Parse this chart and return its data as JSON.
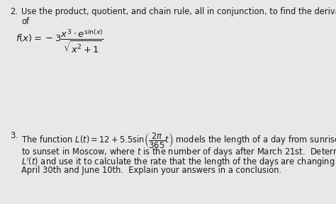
{
  "background_color": "#e8e8e8",
  "text_color": "#1a1a1a",
  "fig_width": 4.74,
  "fig_height": 2.88,
  "dpi": 100,
  "item2_number": "2.",
  "item2_line1": "Use the product, quotient, and chain rule, all in conjunction, to find the derivative",
  "item2_line2": "of",
  "item2_formula": "$f(x) = -3\\dfrac{x^3 \\cdot e^{\\sin(x)}}{\\sqrt{x^2+1}}$",
  "item3_number": "3.",
  "item3_line1": "The function $L(t) = 12 + 5.5\\sin\\!\\left(\\dfrac{2\\pi}{365}t\\right)$ models the length of a day from sunrise",
  "item3_line2": "to sunset in Moscow, where $t$ is the number of days after March 21st.  Determine",
  "item3_line3": "$L'(t)$ and use it to calculate the rate that the length of the days are changing on",
  "item3_line4": "April 30th and June 10th.  Explain your answers in a conclusion.",
  "fs": 8.3,
  "fs_formula": 9.5
}
